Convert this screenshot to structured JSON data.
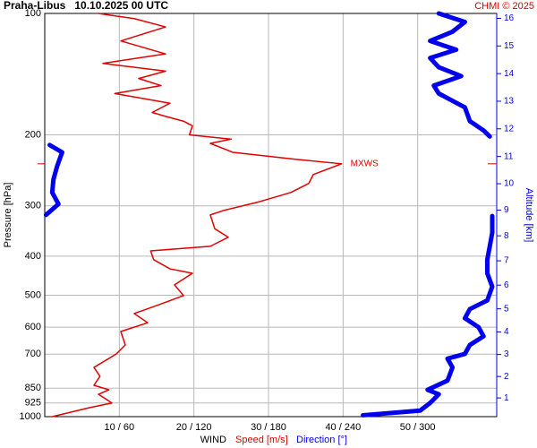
{
  "chart_data": {
    "type": "line",
    "title": "Praha-Libus   10.10.2025 00 UTC",
    "credit": "CHMI © 2025",
    "ylabel": "Pressure [hPa]",
    "y2label": "Altitude [km]",
    "xlabel": [
      "WIND",
      "Speed [m/s]",
      "Direction [°]"
    ],
    "ylog": true,
    "grid": true,
    "ylim": [
      1000,
      100
    ],
    "yticks": [
      100,
      200,
      300,
      400,
      500,
      600,
      700,
      850,
      925,
      1000
    ],
    "xlim": [
      0,
      60
    ],
    "xticks": [
      {
        "value": 10,
        "label": "10 / 60"
      },
      {
        "value": 20,
        "label": "20 / 120"
      },
      {
        "value": 30,
        "label": "30 / 180"
      },
      {
        "value": 40,
        "label": "40 / 240"
      },
      {
        "value": 50,
        "label": "50 / 300"
      }
    ],
    "y2ticks": [
      1,
      2,
      3,
      4,
      5,
      6,
      7,
      8,
      9,
      10,
      11,
      12,
      13,
      14,
      15,
      16
    ],
    "annotation": {
      "text": "MXWS",
      "pressure": 236,
      "value": 39.8
    },
    "series": [
      {
        "name": "Speed [m/s]",
        "color": "#e00000",
        "pressure": [
          1000,
          950,
          925,
          880,
          858,
          836,
          794,
          755,
          699,
          664,
          615,
          585,
          555,
          527,
          501,
          471,
          441,
          430,
          408,
          388,
          378,
          359,
          342,
          316,
          308,
          293,
          278,
          264,
          251,
          236,
          230,
          221,
          210,
          205,
          200,
          190,
          185,
          180,
          176,
          167,
          158,
          151,
          145,
          139,
          133,
          126,
          117,
          108,
          103,
          100
        ],
        "values": [
          1,
          6,
          9,
          7.2,
          8.6,
          6.6,
          7.4,
          6.6,
          9.6,
          10.8,
          10.2,
          13.8,
          12,
          15.4,
          18.6,
          17.4,
          19.8,
          16.8,
          14.6,
          14.2,
          22.2,
          24.6,
          22.8,
          22.2,
          24,
          28.8,
          33,
          35.4,
          36,
          39.8,
          33.6,
          25.2,
          22.2,
          25,
          19.4,
          19.8,
          18.6,
          16.2,
          14.4,
          16.8,
          9.4,
          15.6,
          12.6,
          16.2,
          7.8,
          16.2,
          10.2,
          16.2,
          12,
          7.2
        ]
      },
      {
        "name": "Direction [°]",
        "color": "#0000ee",
        "pressure": [
          992,
          966,
          925,
          880,
          858,
          814,
          755,
          718,
          699,
          664,
          632,
          600,
          570,
          541,
          515,
          476,
          441,
          408,
          378,
          350,
          324,
          318,
          null,
          316,
          297,
          278,
          258,
          239,
          221,
          212,
          null,
          202,
          195,
          185,
          171,
          158,
          151,
          143,
          136,
          129,
          123,
          117,
          111,
          105,
          100
        ],
        "values": [
          256,
          302,
          310,
          317,
          308,
          324,
          328,
          324,
          338,
          342,
          353,
          349,
          338,
          342,
          356,
          360,
          356,
          356,
          358,
          360,
          360,
          360,
          null,
          1,
          11,
          6,
          7,
          10,
          14,
          4,
          null,
          358,
          353,
          342,
          338,
          317,
          313,
          335,
          317,
          310,
          331,
          310,
          328,
          338,
          317
        ]
      }
    ]
  }
}
